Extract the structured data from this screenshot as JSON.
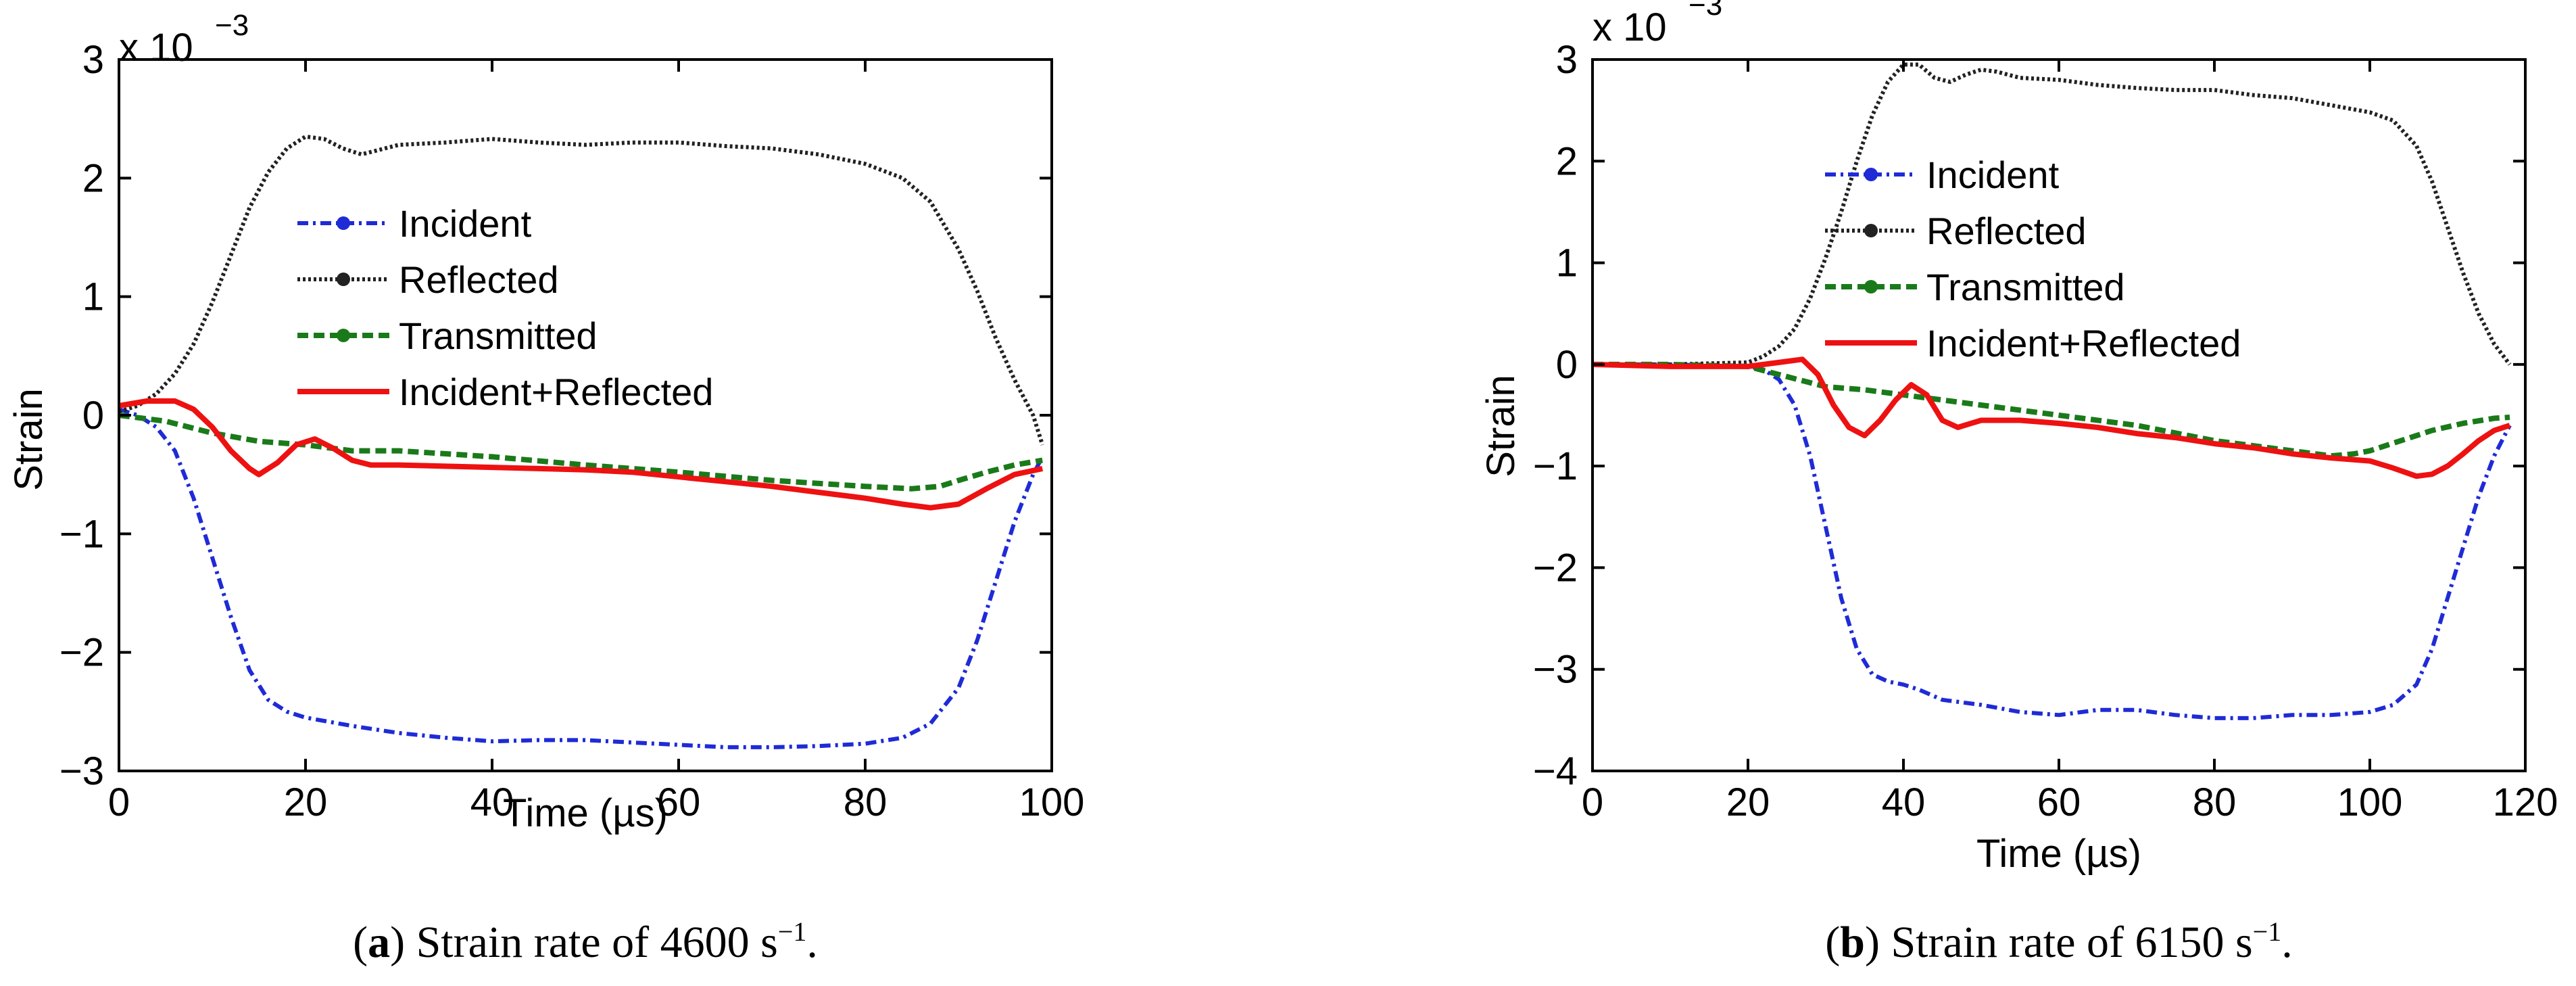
{
  "chart_data": [
    {
      "id": "a",
      "type": "line",
      "xlabel": "Time (µs)",
      "ylabel": "Strain",
      "xlim": [
        0,
        100
      ],
      "ylim": [
        -3,
        3
      ],
      "xticks": [
        0,
        20,
        40,
        60,
        80,
        100
      ],
      "yticks": [
        -3,
        -2,
        -1,
        0,
        1,
        2,
        3
      ],
      "xtick_labels": [
        "0",
        "20",
        "40",
        "60",
        "80",
        "100"
      ],
      "ytick_labels": [
        "−3",
        "−2",
        "−1",
        "0",
        "1",
        "2",
        "3"
      ],
      "yscale_label": {
        "base": "x 10",
        "exponent": "−3"
      },
      "legend_position": "center",
      "caption": {
        "letter": "a",
        "text": " Strain rate of 4600 s",
        "superscript": "−1",
        "end": "."
      },
      "series": [
        {
          "name": "Incident",
          "color": "#1f2bd6",
          "style": "dashdot",
          "x": [
            0,
            2,
            4,
            6,
            8,
            10,
            12,
            14,
            16,
            18,
            20,
            25,
            30,
            35,
            40,
            45,
            50,
            55,
            60,
            65,
            70,
            75,
            80,
            84,
            87,
            90,
            92,
            94,
            96,
            98,
            99
          ],
          "y": [
            0.05,
            0.0,
            -0.1,
            -0.3,
            -0.7,
            -1.2,
            -1.7,
            -2.15,
            -2.4,
            -2.5,
            -2.55,
            -2.62,
            -2.68,
            -2.72,
            -2.75,
            -2.74,
            -2.74,
            -2.76,
            -2.78,
            -2.8,
            -2.8,
            -2.79,
            -2.77,
            -2.72,
            -2.6,
            -2.3,
            -1.9,
            -1.4,
            -0.9,
            -0.5,
            -0.35
          ]
        },
        {
          "name": "Reflected",
          "color": "#222222",
          "style": "dotted",
          "x": [
            0,
            2,
            4,
            6,
            8,
            10,
            12,
            14,
            16,
            18,
            20,
            22,
            24,
            26,
            30,
            35,
            40,
            45,
            50,
            55,
            60,
            65,
            70,
            75,
            80,
            84,
            87,
            90,
            92,
            94,
            96,
            98,
            99
          ],
          "y": [
            0.03,
            0.08,
            0.18,
            0.35,
            0.6,
            0.95,
            1.35,
            1.75,
            2.05,
            2.25,
            2.35,
            2.33,
            2.25,
            2.2,
            2.28,
            2.3,
            2.33,
            2.3,
            2.28,
            2.3,
            2.3,
            2.27,
            2.25,
            2.2,
            2.12,
            2.0,
            1.8,
            1.4,
            1.05,
            0.65,
            0.3,
            0.0,
            -0.25
          ]
        },
        {
          "name": "Transmitted",
          "color": "#1a7a1a",
          "style": "dashed",
          "x": [
            0,
            5,
            10,
            15,
            20,
            25,
            30,
            40,
            50,
            60,
            70,
            80,
            85,
            88,
            90,
            93,
            96,
            99
          ],
          "y": [
            0.0,
            -0.05,
            -0.15,
            -0.22,
            -0.25,
            -0.3,
            -0.3,
            -0.35,
            -0.42,
            -0.48,
            -0.55,
            -0.6,
            -0.62,
            -0.6,
            -0.55,
            -0.48,
            -0.42,
            -0.38
          ]
        },
        {
          "name": "Incident+Reflected",
          "color": "#ee1111",
          "style": "solid",
          "x": [
            0,
            3,
            6,
            8,
            10,
            12,
            14,
            15,
            17,
            19,
            21,
            23,
            25,
            27,
            30,
            35,
            40,
            45,
            50,
            55,
            60,
            65,
            70,
            75,
            80,
            84,
            87,
            90,
            93,
            96,
            99
          ],
          "y": [
            0.08,
            0.12,
            0.12,
            0.05,
            -0.1,
            -0.3,
            -0.45,
            -0.5,
            -0.4,
            -0.25,
            -0.2,
            -0.28,
            -0.38,
            -0.42,
            -0.42,
            -0.43,
            -0.44,
            -0.45,
            -0.46,
            -0.48,
            -0.52,
            -0.56,
            -0.6,
            -0.65,
            -0.7,
            -0.75,
            -0.78,
            -0.75,
            -0.62,
            -0.5,
            -0.45
          ]
        }
      ]
    },
    {
      "id": "b",
      "type": "line",
      "xlabel": "Time (µs)",
      "ylabel": "Strain",
      "xlim": [
        0,
        120
      ],
      "ylim": [
        -4,
        3
      ],
      "xticks": [
        0,
        20,
        40,
        60,
        80,
        100,
        120
      ],
      "yticks": [
        -4,
        -3,
        -2,
        -1,
        0,
        1,
        2,
        3
      ],
      "xtick_labels": [
        "0",
        "20",
        "40",
        "60",
        "80",
        "100",
        "120"
      ],
      "ytick_labels": [
        "−4",
        "−3",
        "−2",
        "−1",
        "0",
        "1",
        "2",
        "3"
      ],
      "yscale_label": {
        "base": "x 10",
        "exponent": "−3"
      },
      "legend_position": "upper-center",
      "caption": {
        "letter": "b",
        "text": " Strain rate of 6150 s",
        "superscript": "−1",
        "end": "."
      },
      "series": [
        {
          "name": "Incident",
          "color": "#1f2bd6",
          "style": "dashdot",
          "x": [
            0,
            10,
            20,
            22,
            24,
            26,
            28,
            30,
            32,
            34,
            36,
            38,
            40,
            42,
            45,
            50,
            55,
            60,
            65,
            70,
            75,
            80,
            85,
            90,
            95,
            100,
            103,
            106,
            108,
            110,
            112,
            114,
            116,
            118
          ],
          "y": [
            0.0,
            0.0,
            -0.02,
            -0.05,
            -0.15,
            -0.4,
            -0.9,
            -1.6,
            -2.3,
            -2.8,
            -3.05,
            -3.12,
            -3.15,
            -3.2,
            -3.3,
            -3.35,
            -3.42,
            -3.45,
            -3.4,
            -3.4,
            -3.45,
            -3.48,
            -3.48,
            -3.45,
            -3.45,
            -3.42,
            -3.35,
            -3.15,
            -2.8,
            -2.3,
            -1.8,
            -1.3,
            -0.9,
            -0.6
          ]
        },
        {
          "name": "Reflected",
          "color": "#222222",
          "style": "dotted",
          "x": [
            0,
            10,
            20,
            22,
            24,
            26,
            28,
            30,
            32,
            34,
            36,
            38,
            40,
            42,
            44,
            46,
            48,
            50,
            52,
            55,
            60,
            65,
            70,
            75,
            80,
            85,
            90,
            95,
            100,
            103,
            106,
            108,
            110,
            112,
            114,
            116,
            118
          ],
          "y": [
            0.0,
            0.0,
            0.02,
            0.08,
            0.18,
            0.35,
            0.65,
            1.05,
            1.5,
            2.0,
            2.45,
            2.78,
            2.95,
            2.95,
            2.82,
            2.78,
            2.85,
            2.9,
            2.88,
            2.82,
            2.8,
            2.75,
            2.72,
            2.7,
            2.7,
            2.65,
            2.62,
            2.55,
            2.48,
            2.4,
            2.15,
            1.8,
            1.35,
            0.9,
            0.5,
            0.2,
            0.0
          ]
        },
        {
          "name": "Transmitted",
          "color": "#1a7a1a",
          "style": "dashed",
          "x": [
            0,
            10,
            20,
            25,
            30,
            35,
            40,
            50,
            60,
            70,
            80,
            90,
            95,
            98,
            100,
            104,
            108,
            112,
            116,
            118
          ],
          "y": [
            0.0,
            0.0,
            -0.02,
            -0.12,
            -0.22,
            -0.25,
            -0.3,
            -0.4,
            -0.5,
            -0.6,
            -0.75,
            -0.85,
            -0.9,
            -0.88,
            -0.85,
            -0.75,
            -0.65,
            -0.58,
            -0.53,
            -0.52
          ]
        },
        {
          "name": "Incident+Reflected",
          "color": "#ee1111",
          "style": "solid",
          "x": [
            0,
            10,
            20,
            24,
            27,
            29,
            31,
            33,
            35,
            37,
            39,
            41,
            43,
            45,
            47,
            50,
            55,
            60,
            65,
            70,
            75,
            80,
            85,
            90,
            95,
            100,
            103,
            106,
            108,
            110,
            112,
            114,
            116,
            118
          ],
          "y": [
            0.0,
            -0.02,
            -0.02,
            0.02,
            0.05,
            -0.1,
            -0.4,
            -0.62,
            -0.7,
            -0.55,
            -0.35,
            -0.2,
            -0.3,
            -0.55,
            -0.62,
            -0.55,
            -0.55,
            -0.58,
            -0.62,
            -0.68,
            -0.72,
            -0.78,
            -0.82,
            -0.88,
            -0.92,
            -0.95,
            -1.02,
            -1.1,
            -1.08,
            -1.0,
            -0.88,
            -0.75,
            -0.65,
            -0.6
          ]
        }
      ]
    }
  ]
}
